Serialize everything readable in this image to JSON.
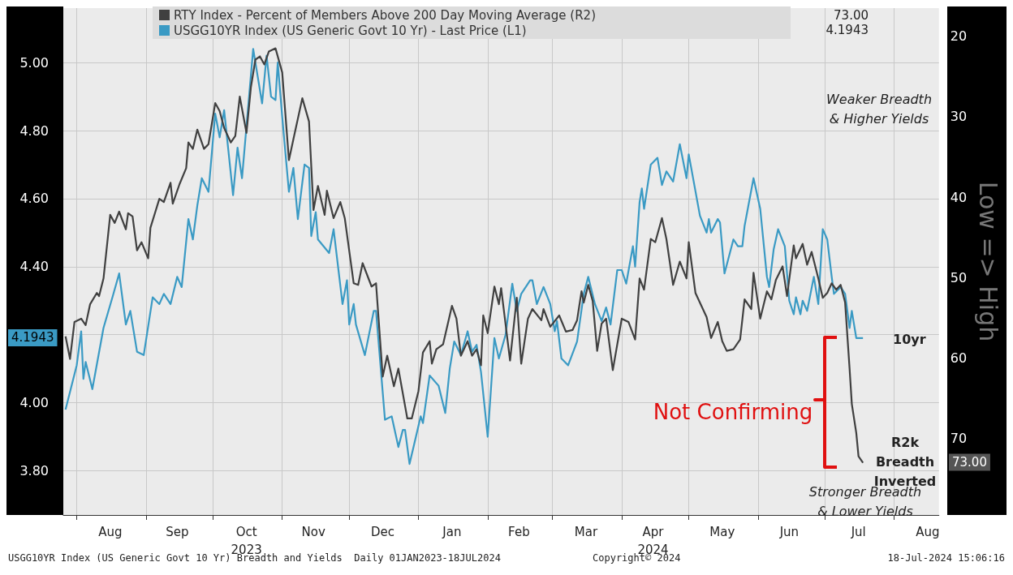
{
  "chart_data": {
    "type": "line",
    "xlim": [
      "2023-07-26",
      "2024-08-21"
    ],
    "xticks": [
      {
        "value": "2023-08-01",
        "label": null
      },
      {
        "value": "2023-09-01",
        "label": null
      },
      {
        "value": "2023-10-01",
        "label": null
      },
      {
        "value": "2023-11-01",
        "label": null
      },
      {
        "value": "2023-12-01",
        "label": null
      },
      {
        "value": "2024-01-01",
        "label": null
      },
      {
        "value": "2024-02-01",
        "label": null
      },
      {
        "value": "2024-03-01",
        "label": null
      },
      {
        "value": "2024-04-01",
        "label": null
      },
      {
        "value": "2024-05-01",
        "label": null
      },
      {
        "value": "2024-06-01",
        "label": null
      },
      {
        "value": "2024-07-01",
        "label": null
      },
      {
        "value": "2024-08-01",
        "label": null
      },
      {
        "value": "2023-08-16",
        "label": "Aug"
      },
      {
        "value": "2023-09-15",
        "label": "Sep"
      },
      {
        "value": "2023-10-16",
        "label": "Oct\n2023"
      },
      {
        "value": "2023-11-15",
        "label": "Nov"
      },
      {
        "value": "2023-12-16",
        "label": "Dec"
      },
      {
        "value": "2024-01-16",
        "label": "Jan"
      },
      {
        "value": "2024-02-15",
        "label": "Feb"
      },
      {
        "value": "2024-03-16",
        "label": "Mar"
      },
      {
        "value": "2024-04-15",
        "label": "Apr\n2024"
      },
      {
        "value": "2024-05-16",
        "label": "May"
      },
      {
        "value": "2024-06-15",
        "label": "Jun"
      },
      {
        "value": "2024-07-16",
        "label": "Jul"
      },
      {
        "value": "2024-08-16",
        "label": "Aug"
      }
    ],
    "ylim": [
      3.67,
      5.16
    ],
    "yticks": [
      {
        "value": 3.8,
        "label": "3.80"
      },
      {
        "value": 4.0,
        "label": "4.00"
      },
      {
        "value": 4.2,
        "label": null
      },
      {
        "value": 4.4,
        "label": "4.40"
      },
      {
        "value": 4.6,
        "label": "4.60"
      },
      {
        "value": 4.8,
        "label": "4.80"
      },
      {
        "value": 5.0,
        "label": "5.00"
      }
    ],
    "y2lim": [
      79.5,
      16.5
    ],
    "y2ticks": [
      20,
      30,
      40,
      50,
      60,
      70
    ],
    "y2label": "Low => High",
    "grid": true,
    "legend": "top",
    "marker": "none",
    "line_style": "solid",
    "series": [
      {
        "name": "RTY Index - Percent of Members Above 200 Day Moving Average (R2)",
        "color": "#404040",
        "axis": "y2",
        "x": [
          "2023-07-27",
          "2023-07-29",
          "2023-07-31",
          "2023-08-03",
          "2023-08-05",
          "2023-08-07",
          "2023-08-10",
          "2023-08-11",
          "2023-08-13",
          "2023-08-16",
          "2023-08-18",
          "2023-08-20",
          "2023-08-23",
          "2023-08-24",
          "2023-08-26",
          "2023-08-28",
          "2023-08-30",
          "2023-09-02",
          "2023-09-03",
          "2023-09-07",
          "2023-09-09",
          "2023-09-12",
          "2023-09-13",
          "2023-09-16",
          "2023-09-19",
          "2023-09-20",
          "2023-09-22",
          "2023-09-24",
          "2023-09-27",
          "2023-09-29",
          "2023-10-02",
          "2023-10-04",
          "2023-10-06",
          "2023-10-09",
          "2023-10-11",
          "2023-10-13",
          "2023-10-16",
          "2023-10-18",
          "2023-10-20",
          "2023-10-22",
          "2023-10-24",
          "2023-10-26",
          "2023-10-29",
          "2023-11-01",
          "2023-11-04",
          "2023-11-06",
          "2023-11-10",
          "2023-11-13",
          "2023-11-15",
          "2023-11-17",
          "2023-11-20",
          "2023-11-21",
          "2023-11-24",
          "2023-11-27",
          "2023-11-29",
          "2023-12-03",
          "2023-12-05",
          "2023-12-07",
          "2023-12-11",
          "2023-12-13",
          "2023-12-16",
          "2023-12-18",
          "2023-12-21",
          "2023-12-23",
          "2023-12-27",
          "2023-12-29",
          "2024-01-01",
          "2024-01-03",
          "2024-01-06",
          "2024-01-07",
          "2024-01-09",
          "2024-01-12",
          "2024-01-16",
          "2024-01-18",
          "2024-01-20",
          "2024-01-23",
          "2024-01-25",
          "2024-01-27",
          "2024-01-29",
          "2024-01-30",
          "2024-02-01",
          "2024-02-04",
          "2024-02-06",
          "2024-02-07",
          "2024-02-11",
          "2024-02-14",
          "2024-02-16",
          "2024-02-19",
          "2024-02-21",
          "2024-02-25",
          "2024-02-26",
          "2024-02-29",
          "2024-03-04",
          "2024-03-07",
          "2024-03-10",
          "2024-03-12",
          "2024-03-14",
          "2024-03-15",
          "2024-03-17",
          "2024-03-19",
          "2024-03-21",
          "2024-03-23",
          "2024-03-25",
          "2024-03-28",
          "2024-04-01",
          "2024-04-04",
          "2024-04-07",
          "2024-04-09",
          "2024-04-11",
          "2024-04-14",
          "2024-04-16",
          "2024-04-19",
          "2024-04-21",
          "2024-04-24",
          "2024-04-27",
          "2024-04-30",
          "2024-05-01",
          "2024-05-04",
          "2024-05-09",
          "2024-05-11",
          "2024-05-14",
          "2024-05-16",
          "2024-05-18",
          "2024-05-21",
          "2024-05-24",
          "2024-05-26",
          "2024-05-29",
          "2024-05-30",
          "2024-06-02",
          "2024-06-05",
          "2024-06-07",
          "2024-06-09",
          "2024-06-12",
          "2024-06-14",
          "2024-06-17",
          "2024-06-18",
          "2024-06-21",
          "2024-06-23",
          "2024-06-25",
          "2024-06-28",
          "2024-06-30",
          "2024-07-02",
          "2024-07-04",
          "2024-07-06",
          "2024-07-08",
          "2024-07-10",
          "2024-07-12",
          "2024-07-13",
          "2024-07-15",
          "2024-07-16",
          "2024-07-18"
        ],
        "values": [
          57.3,
          60.1,
          55.5,
          55.1,
          55.9,
          53.3,
          51.9,
          52.3,
          50.1,
          42.2,
          43.2,
          41.8,
          44.0,
          42.0,
          42.4,
          46.6,
          45.6,
          47.6,
          43.8,
          40.2,
          40.6,
          38.2,
          40.8,
          38.4,
          36.4,
          33.2,
          34.0,
          31.6,
          34.0,
          33.4,
          28.3,
          29.3,
          31.4,
          33.2,
          32.4,
          27.5,
          32.0,
          26.3,
          22.9,
          22.5,
          23.5,
          21.9,
          21.5,
          24.5,
          35.4,
          32.8,
          27.7,
          30.6,
          41.6,
          38.6,
          42.2,
          39.2,
          42.6,
          40.6,
          42.6,
          50.7,
          50.9,
          48.2,
          51.1,
          50.7,
          62.3,
          59.7,
          63.5,
          61.3,
          67.5,
          67.5,
          64.1,
          59.3,
          57.9,
          60.7,
          58.9,
          58.3,
          53.5,
          55.1,
          59.7,
          57.9,
          59.7,
          58.9,
          60.9,
          54.7,
          56.9,
          51.1,
          53.3,
          51.3,
          60.3,
          52.5,
          60.7,
          55.1,
          53.9,
          55.3,
          53.9,
          56.1,
          54.7,
          56.7,
          56.5,
          55.3,
          51.7,
          53.1,
          50.9,
          52.9,
          59.1,
          55.7,
          55.1,
          61.5,
          55.1,
          55.5,
          57.7,
          50.1,
          51.5,
          45.2,
          45.6,
          42.6,
          45.2,
          50.9,
          48.0,
          50.1,
          45.6,
          51.9,
          54.9,
          57.5,
          55.5,
          57.9,
          59.1,
          58.9,
          57.7,
          52.7,
          53.9,
          49.4,
          55.1,
          51.7,
          52.7,
          50.3,
          48.6,
          52.3,
          46.0,
          47.6,
          45.8,
          48.4,
          46.8,
          50.1,
          52.5,
          51.9,
          50.7,
          51.5,
          50.9,
          53.1,
          61.3,
          65.7,
          69.3,
          72.2,
          73.0
        ]
      },
      {
        "name": "USGG10YR Index (US Generic Govt 10 Yr) - Last Price (L1)",
        "color": "#3a9ac4",
        "x": [
          "2023-07-27",
          "2023-08-01",
          "2023-08-03",
          "2023-08-04",
          "2023-08-05",
          "2023-08-08",
          "2023-08-13",
          "2023-08-17",
          "2023-08-20",
          "2023-08-23",
          "2023-08-25",
          "2023-08-28",
          "2023-08-31",
          "2023-09-04",
          "2023-09-07",
          "2023-09-09",
          "2023-09-12",
          "2023-09-15",
          "2023-09-17",
          "2023-09-20",
          "2023-09-22",
          "2023-09-24",
          "2023-09-26",
          "2023-09-29",
          "2023-10-02",
          "2023-10-04",
          "2023-10-06",
          "2023-10-10",
          "2023-10-12",
          "2023-10-14",
          "2023-10-19",
          "2023-10-23",
          "2023-10-25",
          "2023-10-27",
          "2023-10-29",
          "2023-10-30",
          "2023-11-01",
          "2023-11-04",
          "2023-11-06",
          "2023-11-08",
          "2023-11-11",
          "2023-11-13",
          "2023-11-14",
          "2023-11-16",
          "2023-11-17",
          "2023-11-22",
          "2023-11-24",
          "2023-11-28",
          "2023-11-30",
          "2023-12-01",
          "2023-12-03",
          "2023-12-04",
          "2023-12-08",
          "2023-12-12",
          "2023-12-13",
          "2023-12-17",
          "2023-12-20",
          "2023-12-23",
          "2023-12-25",
          "2023-12-26",
          "2023-12-28",
          "2024-01-02",
          "2024-01-03",
          "2024-01-06",
          "2024-01-10",
          "2024-01-13",
          "2024-01-15",
          "2024-01-17",
          "2024-01-20",
          "2024-01-23",
          "2024-01-25",
          "2024-01-27",
          "2024-01-29",
          "2024-02-01",
          "2024-02-04",
          "2024-02-06",
          "2024-02-09",
          "2024-02-12",
          "2024-02-14",
          "2024-02-16",
          "2024-02-20",
          "2024-02-21",
          "2024-02-23",
          "2024-02-26",
          "2024-02-29",
          "2024-03-02",
          "2024-03-03",
          "2024-03-05",
          "2024-03-08",
          "2024-03-12",
          "2024-03-15",
          "2024-03-17",
          "2024-03-20",
          "2024-03-23",
          "2024-03-25",
          "2024-03-27",
          "2024-03-30",
          "2024-04-01",
          "2024-04-03",
          "2024-04-06",
          "2024-04-07",
          "2024-04-09",
          "2024-04-10",
          "2024-04-11",
          "2024-04-14",
          "2024-04-17",
          "2024-04-19",
          "2024-04-21",
          "2024-04-24",
          "2024-04-27",
          "2024-04-30",
          "2024-05-01",
          "2024-05-06",
          "2024-05-09",
          "2024-05-10",
          "2024-05-11",
          "2024-05-14",
          "2024-05-15",
          "2024-05-17",
          "2024-05-21",
          "2024-05-23",
          "2024-05-25",
          "2024-05-26",
          "2024-05-30",
          "2024-06-02",
          "2024-06-05",
          "2024-06-06",
          "2024-06-08",
          "2024-06-10",
          "2024-06-13",
          "2024-06-15",
          "2024-06-17",
          "2024-06-18",
          "2024-06-20",
          "2024-06-21",
          "2024-06-23",
          "2024-06-26",
          "2024-06-28",
          "2024-06-30",
          "2024-07-02",
          "2024-07-04",
          "2024-07-05",
          "2024-07-08",
          "2024-07-10",
          "2024-07-12",
          "2024-07-13",
          "2024-07-15",
          "2024-07-17",
          "2024-07-18"
        ],
        "values": [
          3.98,
          4.11,
          4.21,
          4.07,
          4.12,
          4.04,
          4.22,
          4.31,
          4.38,
          4.23,
          4.27,
          4.15,
          4.14,
          4.31,
          4.29,
          4.32,
          4.29,
          4.37,
          4.34,
          4.54,
          4.48,
          4.58,
          4.66,
          4.62,
          4.85,
          4.78,
          4.86,
          4.61,
          4.75,
          4.66,
          5.04,
          4.88,
          5.02,
          4.9,
          4.89,
          5.0,
          4.84,
          4.62,
          4.69,
          4.54,
          4.7,
          4.69,
          4.49,
          4.56,
          4.48,
          4.44,
          4.51,
          4.29,
          4.36,
          4.23,
          4.29,
          4.23,
          4.14,
          4.27,
          4.27,
          3.95,
          3.96,
          3.87,
          3.92,
          3.92,
          3.82,
          3.96,
          3.94,
          4.08,
          4.05,
          3.97,
          4.1,
          4.18,
          4.14,
          4.21,
          4.15,
          4.17,
          4.09,
          3.9,
          4.19,
          4.13,
          4.2,
          4.35,
          4.27,
          4.32,
          4.36,
          4.36,
          4.29,
          4.34,
          4.29,
          4.21,
          4.24,
          4.13,
          4.11,
          4.18,
          4.32,
          4.37,
          4.29,
          4.24,
          4.28,
          4.23,
          4.39,
          4.39,
          4.35,
          4.46,
          4.4,
          4.59,
          4.63,
          4.57,
          4.7,
          4.72,
          4.64,
          4.68,
          4.65,
          4.76,
          4.66,
          4.73,
          4.55,
          4.5,
          4.54,
          4.5,
          4.54,
          4.53,
          4.38,
          4.48,
          4.46,
          4.46,
          4.52,
          4.66,
          4.57,
          4.37,
          4.34,
          4.45,
          4.51,
          4.46,
          4.3,
          4.26,
          4.31,
          4.26,
          4.3,
          4.27,
          4.37,
          4.29,
          4.51,
          4.48,
          4.37,
          4.32,
          4.34,
          4.32,
          4.22,
          4.27,
          4.19,
          4.19,
          4.19
        ]
      }
    ],
    "annotations": [
      "Weaker Breadth\n& Higher Yields",
      "Stronger Breadth\n& Lower Yields",
      "Not Confirming",
      "10yr",
      "R2k\nBreadth\nInverted",
      "USGG10YR Index (US Generic Govt 10 Yr) Breadth and Yields  Daily 01JAN2023-18JUL2024",
      "Copyright© 2024",
      "18-Jul-2024 15:06:16",
      "73.00",
      "4.1943",
      "4.1943",
      "73.00"
    ]
  }
}
